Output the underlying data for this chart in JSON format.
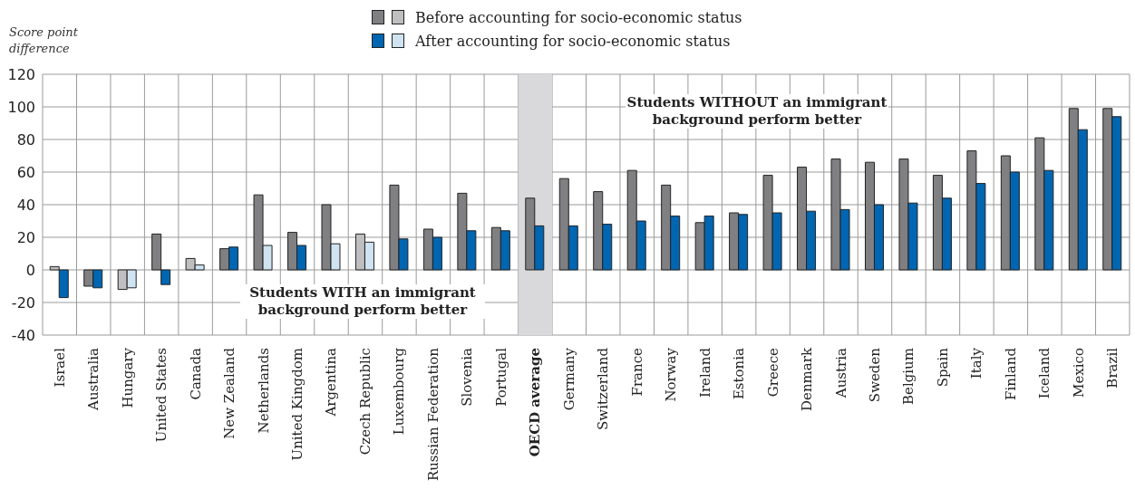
{
  "chart_data": {
    "type": "bar",
    "ylabel": "Score point difference",
    "categories": [
      "Israel",
      "Australia",
      "Hungary",
      "United States",
      "Canada",
      "New Zealand",
      "Netherlands",
      "United Kingdom",
      "Argentina",
      "Czech Republic",
      "Luxembourg",
      "Russian Federation",
      "Slovenia",
      "Portugal",
      "OECD average",
      "Germany",
      "Switzerland",
      "France",
      "Norway",
      "Ireland",
      "Estonia",
      "Greece",
      "Denmark",
      "Austria",
      "Sweden",
      "Belgium",
      "Spain",
      "Italy",
      "Finland",
      "Iceland",
      "Mexico",
      "Brazil"
    ],
    "series": [
      {
        "name": "Before accounting for socio-economic status",
        "color": "#808083",
        "values": [
          2,
          -10,
          -12,
          22,
          7,
          13,
          46,
          23,
          40,
          22,
          52,
          25,
          47,
          26,
          44,
          56,
          48,
          61,
          52,
          29,
          35,
          58,
          63,
          68,
          66,
          68,
          58,
          73,
          70,
          81,
          99,
          99
        ],
        "colors": [
          "#bfbfc1",
          "#808083",
          "#bfbfc1",
          "#808083",
          "#bfbfc1",
          "#808083",
          "#808083",
          "#808083",
          "#808083",
          "#bfbfc1",
          "#808083",
          "#808083",
          "#808083",
          "#808083",
          "#808083",
          "#808083",
          "#808083",
          "#808083",
          "#808083",
          "#808083",
          "#808083",
          "#808083",
          "#808083",
          "#808083",
          "#808083",
          "#808083",
          "#808083",
          "#808083",
          "#808083",
          "#808083",
          "#808083",
          "#808083"
        ]
      },
      {
        "name": "After accounting for socio-economic status",
        "color": "#0066b2",
        "values": [
          -17,
          -11,
          -11,
          -9,
          3,
          14,
          15,
          15,
          16,
          17,
          19,
          20,
          24,
          24,
          27,
          27,
          28,
          30,
          33,
          33,
          34,
          35,
          36,
          37,
          40,
          41,
          44,
          53,
          60,
          61,
          86,
          94
        ],
        "colors": [
          "#0066b2",
          "#0066b2",
          "#cfe3f1",
          "#0066b2",
          "#cfe3f1",
          "#0066b2",
          "#cfe3f1",
          "#0066b2",
          "#cfe3f1",
          "#cfe3f1",
          "#0066b2",
          "#0066b2",
          "#0066b2",
          "#0066b2",
          "#0066b2",
          "#0066b2",
          "#0066b2",
          "#0066b2",
          "#0066b2",
          "#0066b2",
          "#0066b2",
          "#0066b2",
          "#0066b2",
          "#0066b2",
          "#0066b2",
          "#0066b2",
          "#0066b2",
          "#0066b2",
          "#0066b2",
          "#0066b2",
          "#0066b2",
          "#0066b2"
        ]
      }
    ],
    "ylim": [
      -40,
      120
    ],
    "yticks": [
      -40,
      -20,
      0,
      20,
      40,
      60,
      80,
      100,
      120
    ],
    "grid": true,
    "legend": "top",
    "bands": [
      {
        "axis": "x",
        "from": "OECD average",
        "to": "OECD average",
        "color": "#d9d9db"
      }
    ],
    "annotations": [
      "Students WITHOUT an immigrant background perform better",
      "Students WITH an immigrant background perform better"
    ]
  }
}
